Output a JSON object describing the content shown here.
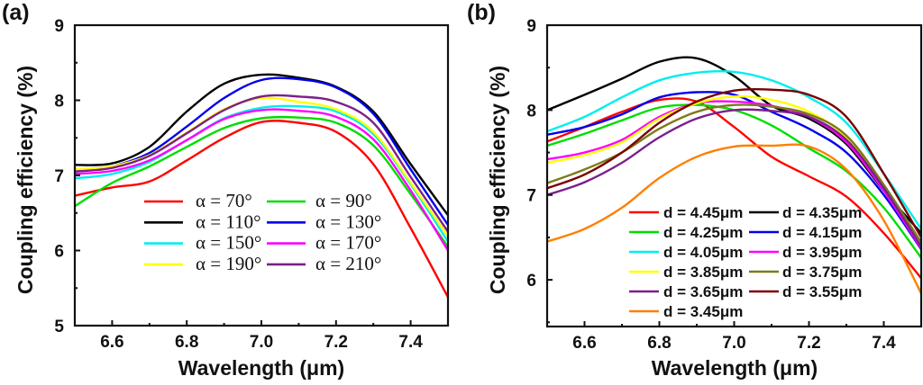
{
  "chart_data": [
    {
      "type": "line",
      "panel_label": "(a)",
      "xlabel": "Wavelength (μm)",
      "ylabel": "Coupling efficiency (%)",
      "xlim": [
        6.5,
        7.5
      ],
      "ylim": [
        5,
        9
      ],
      "xticks": [
        6.6,
        6.8,
        7.0,
        7.2,
        7.4
      ],
      "xtick_labels": [
        "6.6",
        "6.8",
        "7.0",
        "7.2",
        "7.4"
      ],
      "yticks": [
        5,
        6,
        7,
        8,
        9
      ],
      "ytick_labels": [
        "5",
        "6",
        "7",
        "8",
        "9"
      ],
      "legend_position": "lower-center",
      "grid": false,
      "x": [
        6.5,
        6.6,
        6.7,
        6.8,
        6.9,
        7.0,
        7.1,
        7.2,
        7.3,
        7.4,
        7.5
      ],
      "series": [
        {
          "name": "α = 70°",
          "color": "#ff0000",
          "values": [
            6.73,
            6.84,
            6.92,
            7.2,
            7.5,
            7.71,
            7.7,
            7.58,
            7.15,
            6.3,
            5.38
          ]
        },
        {
          "name": "α = 90°",
          "color": "#00dd00",
          "values": [
            6.59,
            6.9,
            7.12,
            7.38,
            7.63,
            7.76,
            7.77,
            7.7,
            7.4,
            6.75,
            6.05
          ]
        },
        {
          "name": "α = 110°",
          "color": "#000000",
          "values": [
            7.14,
            7.16,
            7.38,
            7.85,
            8.22,
            8.34,
            8.3,
            8.18,
            7.85,
            7.15,
            6.47
          ]
        },
        {
          "name": "α = 130°",
          "color": "#0000ee",
          "values": [
            7.06,
            7.12,
            7.3,
            7.65,
            8.03,
            8.27,
            8.28,
            8.17,
            7.82,
            7.08,
            6.34
          ]
        },
        {
          "name": "α = 150°",
          "color": "#00eeee",
          "values": [
            6.96,
            7.02,
            7.18,
            7.47,
            7.76,
            7.9,
            7.92,
            7.85,
            7.55,
            6.88,
            6.12
          ]
        },
        {
          "name": "α = 170°",
          "color": "#ff00ff",
          "values": [
            7.02,
            7.06,
            7.2,
            7.47,
            7.75,
            7.87,
            7.86,
            7.78,
            7.48,
            6.8,
            6.0
          ]
        },
        {
          "name": "α = 190°",
          "color": "#ffff00",
          "values": [
            7.08,
            7.12,
            7.27,
            7.57,
            7.88,
            8.03,
            7.98,
            7.88,
            7.58,
            6.9,
            6.19
          ]
        },
        {
          "name": "α = 210°",
          "color": "#7b1f8c",
          "values": [
            7.05,
            7.1,
            7.26,
            7.56,
            7.87,
            8.05,
            8.05,
            7.98,
            7.7,
            6.98,
            6.25
          ]
        }
      ]
    },
    {
      "type": "line",
      "panel_label": "(b)",
      "xlabel": "Wavelength (μm)",
      "ylabel": "Coupling efficiency (%)",
      "xlim": [
        6.5,
        7.5
      ],
      "ylim": [
        5.45,
        9
      ],
      "xticks": [
        6.6,
        6.8,
        7.0,
        7.2,
        7.4
      ],
      "xtick_labels": [
        "6.6",
        "6.8",
        "7.0",
        "7.2",
        "7.4"
      ],
      "yticks": [
        6,
        7,
        8,
        9
      ],
      "ytick_labels": [
        "6",
        "7",
        "8",
        "9"
      ],
      "legend_position": "lower-center",
      "grid": false,
      "x": [
        6.5,
        6.6,
        6.7,
        6.8,
        6.9,
        7.0,
        7.1,
        7.2,
        7.3,
        7.4,
        7.5
      ],
      "series": [
        {
          "name": "d = 4.45μm",
          "color": "#ff0000",
          "values": [
            7.63,
            7.8,
            7.98,
            8.12,
            8.1,
            7.8,
            7.45,
            7.22,
            6.98,
            6.55,
            6.02
          ]
        },
        {
          "name": "d = 4.35μm",
          "color": "#000000",
          "values": [
            8.0,
            8.18,
            8.37,
            8.57,
            8.61,
            8.4,
            8.05,
            7.9,
            7.6,
            7.05,
            6.55
          ]
        },
        {
          "name": "d = 4.25μm",
          "color": "#00dd00",
          "values": [
            7.58,
            7.72,
            7.88,
            8.03,
            8.06,
            8.0,
            7.82,
            7.55,
            7.28,
            6.85,
            6.26
          ]
        },
        {
          "name": "d = 4.15μm",
          "color": "#0000ee",
          "values": [
            7.71,
            7.8,
            7.95,
            8.15,
            8.21,
            8.18,
            7.98,
            7.78,
            7.5,
            7.0,
            6.36
          ]
        },
        {
          "name": "d = 4.05μm",
          "color": "#00eeee",
          "values": [
            7.75,
            7.92,
            8.15,
            8.35,
            8.44,
            8.45,
            8.35,
            8.15,
            7.85,
            7.25,
            6.6
          ]
        },
        {
          "name": "d = 3.95μm",
          "color": "#ff00ff",
          "values": [
            7.42,
            7.5,
            7.65,
            7.92,
            8.08,
            8.1,
            8.05,
            7.92,
            7.62,
            7.05,
            6.37
          ]
        },
        {
          "name": "d = 3.85μm",
          "color": "#ffff00",
          "values": [
            7.38,
            7.47,
            7.62,
            7.9,
            8.08,
            8.16,
            8.12,
            7.98,
            7.68,
            7.1,
            6.42
          ]
        },
        {
          "name": "d = 3.75μm",
          "color": "#7b7b1a",
          "values": [
            7.14,
            7.3,
            7.5,
            7.78,
            7.98,
            8.06,
            8.04,
            7.95,
            7.7,
            7.12,
            6.44
          ]
        },
        {
          "name": "d = 3.65μm",
          "color": "#7b1f8c",
          "values": [
            7.0,
            7.15,
            7.38,
            7.68,
            7.9,
            8.0,
            7.99,
            7.92,
            7.65,
            7.08,
            6.39
          ]
        },
        {
          "name": "d = 3.55μm",
          "color": "#7a0000",
          "values": [
            7.08,
            7.24,
            7.5,
            7.85,
            8.1,
            8.23,
            8.24,
            8.18,
            7.92,
            7.25,
            6.5
          ]
        },
        {
          "name": "d = 3.45μm",
          "color": "#ff7f00",
          "values": [
            6.45,
            6.6,
            6.85,
            7.2,
            7.45,
            7.57,
            7.58,
            7.57,
            7.3,
            6.7,
            5.84
          ]
        }
      ]
    }
  ]
}
